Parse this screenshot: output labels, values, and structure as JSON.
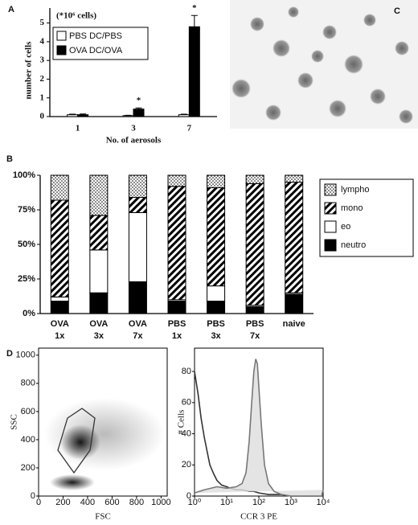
{
  "chart_data": [
    {
      "type": "bar",
      "panel": "A",
      "unit_label": "(*10⁶ cells)",
      "ylabel": "number of cells",
      "xlabel": "No. of aerosols",
      "categories": [
        "1",
        "3",
        "7"
      ],
      "series": [
        {
          "name": "PBS DC/PBS",
          "color": "#ffffff",
          "values": [
            0.1,
            0.05,
            0.1
          ],
          "errors": [
            0.03,
            0.02,
            0.03
          ]
        },
        {
          "name": "OVA DC/OVA",
          "color": "#000000",
          "values": [
            0.1,
            0.4,
            4.8
          ],
          "errors": [
            0.04,
            0.06,
            0.6
          ]
        }
      ],
      "significance": [
        null,
        "*",
        "*"
      ],
      "ylim": [
        0,
        5.8
      ],
      "yticks": [
        0,
        1,
        2,
        3,
        4,
        5
      ]
    },
    {
      "type": "stacked_bar",
      "panel": "B",
      "categories": [
        [
          "OVA",
          "1x"
        ],
        [
          "OVA",
          "3x"
        ],
        [
          "OVA",
          "7x"
        ],
        [
          "PBS",
          "1x"
        ],
        [
          "PBS",
          "3x"
        ],
        [
          "PBS",
          "7x"
        ],
        [
          "naive"
        ]
      ],
      "series": [
        {
          "name": "neutro",
          "color": "#000000",
          "pattern": "solid",
          "values": [
            9,
            15,
            23,
            9,
            9,
            5,
            14
          ]
        },
        {
          "name": "eo",
          "color": "#ffffff",
          "pattern": "solid",
          "values": [
            3,
            31,
            50,
            1,
            11,
            1,
            1
          ]
        },
        {
          "name": "mono",
          "color": "#000000",
          "pattern": "hatch",
          "values": [
            70,
            25,
            11,
            82,
            71,
            88,
            80
          ]
        },
        {
          "name": "lympho",
          "color": "#000000",
          "pattern": "dots",
          "values": [
            18,
            29,
            16,
            8,
            9,
            6,
            5
          ]
        }
      ],
      "ylim": [
        0,
        100
      ],
      "yticks": [
        {
          "value": 0,
          "label": "0%"
        },
        {
          "value": 25,
          "label": "25%"
        },
        {
          "value": 50,
          "label": "50%"
        },
        {
          "value": 75,
          "label": "75%"
        },
        {
          "value": 100,
          "label": "100%"
        }
      ],
      "legend": "right"
    },
    {
      "type": "image",
      "panel": "C"
    },
    {
      "type": "density",
      "panel": "D",
      "xlabel": "FSC",
      "ylabel": "SSC",
      "xlim": [
        0,
        1050
      ],
      "ylim": [
        0,
        1050
      ],
      "xticks": [
        0,
        200,
        400,
        600,
        800,
        1000
      ],
      "yticks": [
        0,
        200,
        400,
        600,
        800,
        1000
      ]
    },
    {
      "type": "line",
      "xlabel": "CCR 3 PE",
      "ylabel": "# Cells",
      "log_x": true,
      "xlim": [
        1,
        10000
      ],
      "ylim": [
        0,
        95
      ],
      "xticks": [
        {
          "value": 1,
          "label": "10⁰"
        },
        {
          "value": 10,
          "label": "10¹"
        },
        {
          "value": 100,
          "label": "10²"
        },
        {
          "value": 1000,
          "label": "10³"
        },
        {
          "value": 10000,
          "label": "10⁴"
        }
      ],
      "yticks": [
        0,
        20,
        40,
        60,
        80
      ],
      "series": [
        {
          "color": "#333333",
          "x": [
            1,
            1.3,
            1.6,
            2,
            2.5,
            3,
            4,
            5,
            7,
            10,
            13,
            20,
            30,
            50,
            70,
            100,
            200,
            500,
            1000,
            5000,
            10000
          ],
          "values": [
            80,
            65,
            50,
            38,
            28,
            20,
            14,
            10,
            7,
            6,
            5,
            4,
            4,
            3,
            3,
            2,
            1,
            1,
            0,
            0,
            0
          ]
        },
        {
          "color": "#777777",
          "fill": "#dddddd",
          "x": [
            1,
            2,
            5,
            10,
            20,
            30,
            40,
            50,
            60,
            70,
            80,
            90,
            100,
            120,
            150,
            200,
            300,
            500,
            1000,
            5000,
            9000,
            10000
          ],
          "values": [
            2,
            4,
            6,
            5,
            6,
            8,
            15,
            35,
            60,
            80,
            88,
            85,
            70,
            45,
            20,
            8,
            3,
            1,
            0,
            0,
            0,
            4
          ]
        }
      ]
    }
  ]
}
